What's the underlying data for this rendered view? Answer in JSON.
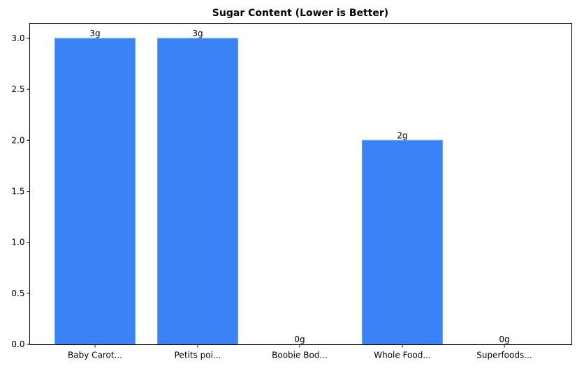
{
  "chart_data": {
    "type": "bar",
    "title": "Sugar Content (Lower is Better)",
    "xlabel": "",
    "ylabel": "",
    "categories": [
      "Baby Carot...",
      "Petits poi...",
      "Boobie Bod...",
      "Whole Food...",
      "Superfoods..."
    ],
    "values": [
      3,
      3,
      0,
      2,
      0
    ],
    "value_labels": [
      "3g",
      "3g",
      "0g",
      "2g",
      "0g"
    ],
    "ylim": [
      0,
      3.15
    ],
    "yticks": [
      "0.0",
      "0.5",
      "1.0",
      "1.5",
      "2.0",
      "2.5",
      "3.0"
    ],
    "grid": false,
    "legend": null,
    "bar_color": "#3b82f6"
  }
}
